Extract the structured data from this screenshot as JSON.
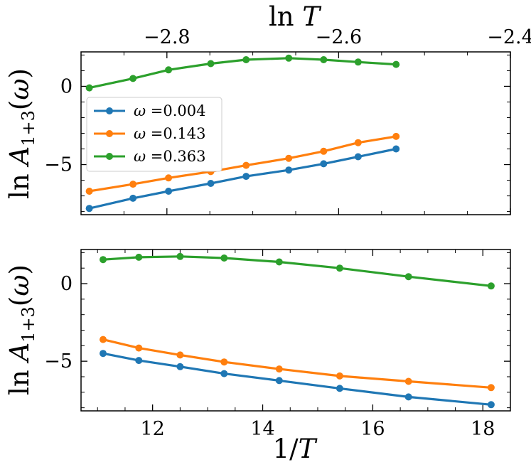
{
  "chart_data": [
    {
      "type": "line",
      "panel": "top",
      "x_title": "ln T",
      "ylabel": "ln A1+3(ω)",
      "xlim": [
        -2.9,
        -2.4
      ],
      "ylim": [
        -8.2,
        2.2
      ],
      "xticks": [
        -2.8,
        -2.6,
        -2.4
      ],
      "xtick_labels": [
        "−2.8",
        "−2.6",
        "−2.4"
      ],
      "yticks": [
        0,
        -5
      ],
      "ytick_labels": [
        "0",
        "−5"
      ],
      "x": [
        -2.8904,
        -2.8395,
        -2.7981,
        -2.7489,
        -2.7078,
        -2.6581,
        -2.6175,
        -2.5773,
        -2.5331
      ],
      "series": [
        {
          "name": "ω =0.004",
          "color": "#1f77b4",
          "values": [
            -7.8,
            -7.15,
            -6.7,
            -6.2,
            -5.75,
            -5.35,
            -4.95,
            -4.5,
            -4.0
          ]
        },
        {
          "name": "ω =0.143",
          "color": "#ff7f0e",
          "values": [
            -6.7,
            -6.25,
            -5.85,
            -5.45,
            -5.05,
            -4.6,
            -4.15,
            -3.6,
            -3.2
          ]
        },
        {
          "name": "ω =0.363",
          "color": "#2ca02c",
          "values": [
            -0.1,
            0.5,
            1.05,
            1.45,
            1.7,
            1.8,
            1.7,
            1.55,
            1.4
          ]
        }
      ],
      "legend": {
        "location": "center-left"
      }
    },
    {
      "type": "line",
      "panel": "bottom",
      "xlabel": "1/T",
      "ylabel": "ln A1+3(ω)",
      "xlim": [
        10.7,
        18.5
      ],
      "ylim": [
        -8.2,
        2.2
      ],
      "xticks": [
        12,
        14,
        16,
        18
      ],
      "xtick_labels": [
        "12",
        "14",
        "16",
        "18"
      ],
      "yticks": [
        0,
        -5
      ],
      "ytick_labels": [
        "0",
        "−5"
      ],
      "x": [
        11.1,
        11.75,
        12.5,
        13.3,
        14.3,
        15.4,
        16.65,
        18.15
      ],
      "series": [
        {
          "name": "ω =0.004",
          "color": "#1f77b4",
          "values": [
            -4.5,
            -4.95,
            -5.35,
            -5.8,
            -6.25,
            -6.75,
            -7.3,
            -7.8
          ]
        },
        {
          "name": "ω =0.143",
          "color": "#ff7f0e",
          "values": [
            -3.6,
            -4.15,
            -4.6,
            -5.05,
            -5.5,
            -5.95,
            -6.3,
            -6.7
          ]
        },
        {
          "name": "ω =0.363",
          "color": "#2ca02c",
          "values": [
            1.55,
            1.7,
            1.75,
            1.65,
            1.4,
            1.0,
            0.45,
            -0.15
          ]
        }
      ]
    }
  ]
}
